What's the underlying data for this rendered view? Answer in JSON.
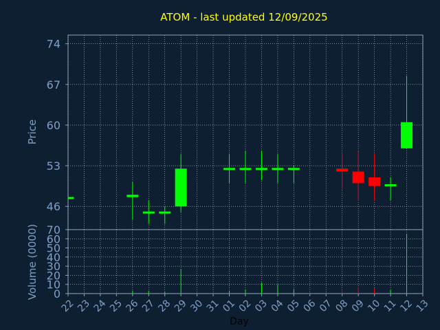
{
  "chart_data": {
    "type": "candlestick",
    "title": "ATOM - last updated 12/09/2025",
    "xlabel": "Day",
    "price_panel": {
      "ylabel": "Price",
      "ylim": [
        42,
        75.5
      ],
      "yticks": [
        46,
        53,
        60,
        67,
        74
      ],
      "grid": true
    },
    "volume_panel": {
      "ylabel": "Volume (0000)",
      "ylim": [
        0,
        70
      ],
      "yticks": [
        0,
        10,
        20,
        30,
        40,
        50,
        60,
        70
      ],
      "grid": true
    },
    "x_tick_labels": [
      "22",
      "23",
      "24",
      "25",
      "26",
      "27",
      "28",
      "29",
      "30",
      "31",
      "01",
      "02",
      "03",
      "04",
      "05",
      "06",
      "07",
      "08",
      "09",
      "10",
      "11",
      "12",
      "13"
    ],
    "candles": [
      {
        "day": "22",
        "open": 47.3,
        "high": 47.5,
        "low": 47.1,
        "close": 47.5,
        "volume": 0
      },
      {
        "day": "26",
        "open": 47.6,
        "high": 50.2,
        "low": 43.7,
        "close": 48.0,
        "volume": 3
      },
      {
        "day": "27",
        "open": 45.0,
        "high": 47.0,
        "low": 43.0,
        "close": 45.0,
        "volume": 3
      },
      {
        "day": "28",
        "open": 45.0,
        "high": 46.0,
        "low": 43.0,
        "close": 45.0,
        "volume": 2
      },
      {
        "day": "29",
        "open": 46.0,
        "high": 55.0,
        "low": 45.0,
        "close": 52.5,
        "volume": 27
      },
      {
        "day": "01",
        "open": 52.3,
        "high": 55.0,
        "low": 50.0,
        "close": 52.5,
        "volume": 3
      },
      {
        "day": "02",
        "open": 52.3,
        "high": 55.5,
        "low": 50.0,
        "close": 52.5,
        "volume": 4
      },
      {
        "day": "03",
        "open": 52.3,
        "high": 55.5,
        "low": 50.5,
        "close": 52.5,
        "volume": 12
      },
      {
        "day": "04",
        "open": 52.3,
        "high": 55.0,
        "low": 50.0,
        "close": 52.5,
        "volume": 10
      },
      {
        "day": "05",
        "open": 52.3,
        "high": 53.0,
        "low": 50.0,
        "close": 52.5,
        "volume": 5
      },
      {
        "day": "08",
        "open": 52.5,
        "high": 55.0,
        "low": 49.0,
        "close": 52.0,
        "volume": 3
      },
      {
        "day": "09",
        "open": 52.0,
        "high": 55.5,
        "low": 47.0,
        "close": 50.0,
        "volume": 7
      },
      {
        "day": "10",
        "open": 51.0,
        "high": 55.0,
        "low": 47.0,
        "close": 49.5,
        "volume": 6
      },
      {
        "day": "11",
        "open": 49.5,
        "high": 51.0,
        "low": 47.0,
        "close": 49.7,
        "volume": 4
      },
      {
        "day": "12",
        "open": 56.0,
        "high": 68.5,
        "low": 56.0,
        "close": 60.5,
        "volume": 65
      }
    ],
    "colors": {
      "background": "#0f1f32",
      "title": "#ffff00",
      "axis_text": "#7f9fc8",
      "frame": "#8aa2c0",
      "grid": "#c8d0dc",
      "up": "#00ff00",
      "down": "#ff0000",
      "xlabel": "#000000"
    }
  }
}
